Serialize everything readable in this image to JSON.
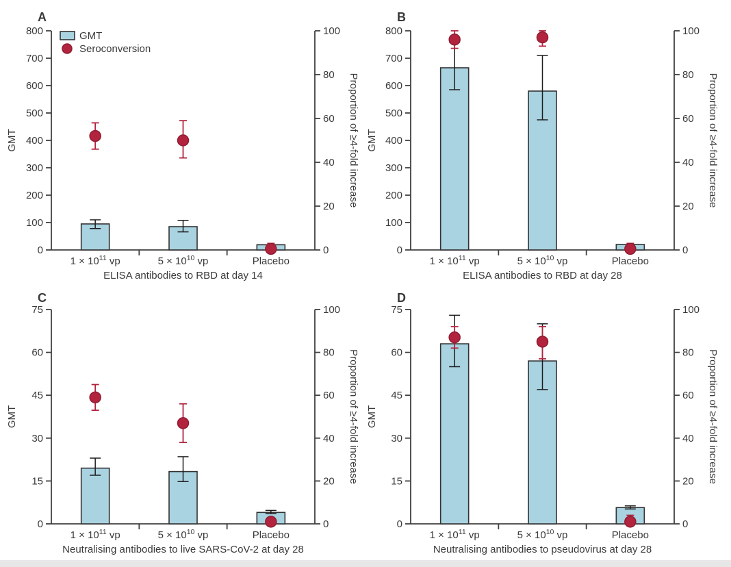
{
  "figure": {
    "background": "#ffffff",
    "bottom_strip_color": "#e7e7e7"
  },
  "colors": {
    "bar_fill": "#a9d3e1",
    "bar_stroke": "#323232",
    "bar_error": "#1c1c1c",
    "dot_fill": "#b2243e",
    "dot_stroke": "#8f1c31",
    "dot_error": "#b2243e",
    "axis": "#404040",
    "text": "#3a3a3a",
    "panel_letter": "#222222"
  },
  "legend": {
    "items": [
      {
        "label": "GMT",
        "swatch": "bar"
      },
      {
        "label": "Seroconversion",
        "swatch": "dot"
      }
    ]
  },
  "chart_data": [
    {
      "panel_label": "A",
      "type": "bar",
      "xlabel": "ELISA antibodies to RBD at day 14",
      "left_axis_label": "GMT",
      "right_axis_label": "Proportion of ≥4-fold increase",
      "left_ylim": [
        0,
        800
      ],
      "left_ticks": [
        0,
        100,
        200,
        300,
        400,
        500,
        600,
        700,
        800
      ],
      "right_ylim": [
        0,
        100
      ],
      "right_ticks": [
        0,
        20,
        40,
        60,
        80,
        100
      ],
      "categories": [
        {
          "pre": "1 × 10",
          "sup": "11",
          "post": " vp"
        },
        {
          "pre": "5 × 10",
          "sup": "10",
          "post": " vp"
        },
        {
          "pre": "Placebo",
          "sup": "",
          "post": ""
        }
      ],
      "series": [
        {
          "name": "GMT",
          "kind": "bar",
          "axis": "left",
          "values": [
            95,
            85,
            19
          ],
          "errors": [
            [
              78,
              110
            ],
            [
              66,
              108
            ],
            null
          ]
        },
        {
          "name": "Seroconversion",
          "kind": "dot",
          "axis": "right",
          "values": [
            52,
            50,
            0.5
          ],
          "errors": [
            [
              46,
              58
            ],
            [
              42,
              59
            ],
            [
              0,
              3
            ]
          ]
        }
      ],
      "show_legend": true
    },
    {
      "panel_label": "B",
      "type": "bar",
      "xlabel": "ELISA antibodies to RBD at day 28",
      "left_axis_label": "GMT",
      "right_axis_label": "Proportion of ≥4-fold increase",
      "left_ylim": [
        0,
        800
      ],
      "left_ticks": [
        0,
        100,
        200,
        300,
        400,
        500,
        600,
        700,
        800
      ],
      "right_ylim": [
        0,
        100
      ],
      "right_ticks": [
        0,
        20,
        40,
        60,
        80,
        100
      ],
      "categories": [
        {
          "pre": "1 × 10",
          "sup": "11",
          "post": " vp"
        },
        {
          "pre": "5 × 10",
          "sup": "10",
          "post": " vp"
        },
        {
          "pre": "Placebo",
          "sup": "",
          "post": ""
        }
      ],
      "series": [
        {
          "name": "GMT",
          "kind": "bar",
          "axis": "left",
          "values": [
            665,
            580,
            20
          ],
          "errors": [
            [
              585,
              758
            ],
            [
              475,
              710
            ],
            null
          ]
        },
        {
          "name": "Seroconversion",
          "kind": "dot",
          "axis": "right",
          "values": [
            96,
            97,
            0.5
          ],
          "errors": [
            [
              92,
              100
            ],
            [
              93,
              100
            ],
            [
              0,
              3
            ]
          ]
        }
      ],
      "show_legend": false
    },
    {
      "panel_label": "C",
      "type": "bar",
      "xlabel": "Neutralising antibodies to live SARS-CoV-2 at day 28",
      "left_axis_label": "GMT",
      "right_axis_label": "Proportion of ≥4-fold increase",
      "left_ylim": [
        0,
        75
      ],
      "left_ticks": [
        0,
        15,
        30,
        45,
        60,
        75
      ],
      "right_ylim": [
        0,
        100
      ],
      "right_ticks": [
        0,
        20,
        40,
        60,
        80,
        100
      ],
      "categories": [
        {
          "pre": "1 × 10",
          "sup": "11",
          "post": " vp"
        },
        {
          "pre": "5 × 10",
          "sup": "10",
          "post": " vp"
        },
        {
          "pre": "Placebo",
          "sup": "",
          "post": ""
        }
      ],
      "series": [
        {
          "name": "GMT",
          "kind": "bar",
          "axis": "left",
          "values": [
            19.5,
            18.3,
            4
          ],
          "errors": [
            [
              17,
              23
            ],
            [
              14.8,
              23.5
            ],
            [
              3.6,
              4.7
            ]
          ]
        },
        {
          "name": "Seroconversion",
          "kind": "dot",
          "axis": "right",
          "values": [
            59,
            47,
            1
          ],
          "errors": [
            [
              53,
              65
            ],
            [
              38,
              56
            ],
            [
              0,
              3
            ]
          ]
        }
      ],
      "show_legend": false
    },
    {
      "panel_label": "D",
      "type": "bar",
      "xlabel": "Neutralising antibodies to pseudovirus at day 28",
      "left_axis_label": "GMT",
      "right_axis_label": "Proportion of ≥4-fold increase",
      "left_ylim": [
        0,
        75
      ],
      "left_ticks": [
        0,
        15,
        30,
        45,
        60,
        75
      ],
      "right_ylim": [
        0,
        100
      ],
      "right_ticks": [
        0,
        20,
        40,
        60,
        80,
        100
      ],
      "categories": [
        {
          "pre": "1 × 10",
          "sup": "11",
          "post": " vp"
        },
        {
          "pre": "5 × 10",
          "sup": "10",
          "post": " vp"
        },
        {
          "pre": "Placebo",
          "sup": "",
          "post": ""
        }
      ],
      "series": [
        {
          "name": "GMT",
          "kind": "bar",
          "axis": "left",
          "values": [
            63,
            57,
            5.7
          ],
          "errors": [
            [
              55,
              73
            ],
            [
              47,
              70
            ],
            [
              5.2,
              6.3
            ]
          ]
        },
        {
          "name": "Seroconversion",
          "kind": "dot",
          "axis": "right",
          "values": [
            87,
            85,
            1
          ],
          "errors": [
            [
              82,
              92
            ],
            [
              77,
              92
            ],
            [
              0,
              4
            ]
          ]
        }
      ],
      "show_legend": false
    }
  ]
}
